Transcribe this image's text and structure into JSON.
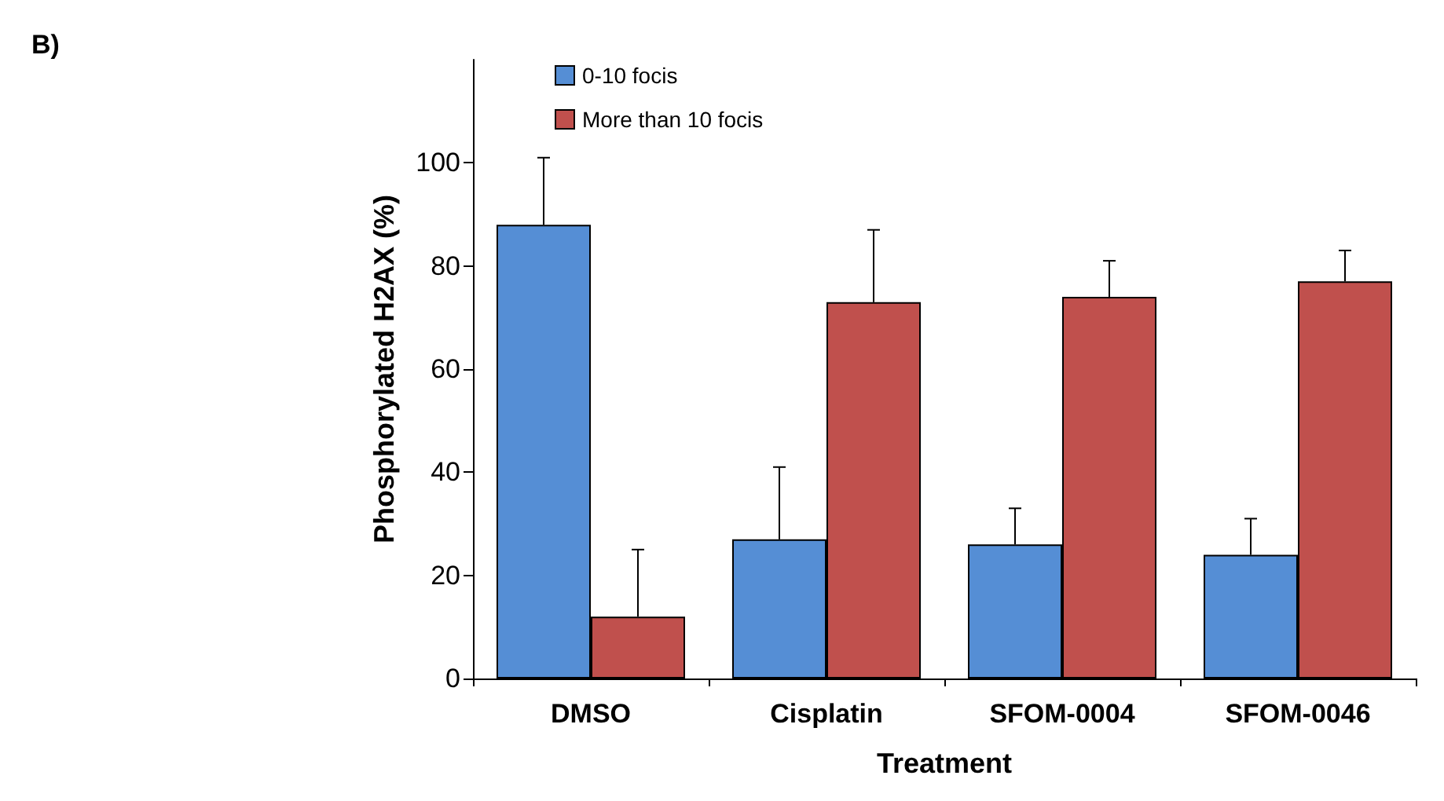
{
  "chart_data": {
    "type": "bar",
    "xlabel": "Treatment",
    "ylabel": "Phosphorylated H2AX (%)",
    "annotations": [
      "B)"
    ],
    "categories": [
      "DMSO",
      "Cisplatin",
      "SFOM-0004",
      "SFOM-0046"
    ],
    "series": [
      {
        "name": "0-10 focis",
        "color": "#558ed5",
        "values": [
          88,
          27,
          26,
          24
        ],
        "errors": [
          [
            88,
            101
          ],
          [
            27,
            41
          ],
          [
            26,
            33
          ],
          [
            24,
            31
          ]
        ]
      },
      {
        "name": "More than 10 focis",
        "color": "#c0504d",
        "values": [
          12,
          73,
          74,
          77
        ],
        "errors": [
          [
            12,
            25
          ],
          [
            73,
            87
          ],
          [
            74,
            81
          ],
          [
            77,
            83
          ]
        ]
      }
    ],
    "ylim": [
      0,
      120
    ],
    "yticks": [
      0,
      20,
      40,
      60,
      80,
      100
    ],
    "grid": false,
    "legend": "top left"
  }
}
